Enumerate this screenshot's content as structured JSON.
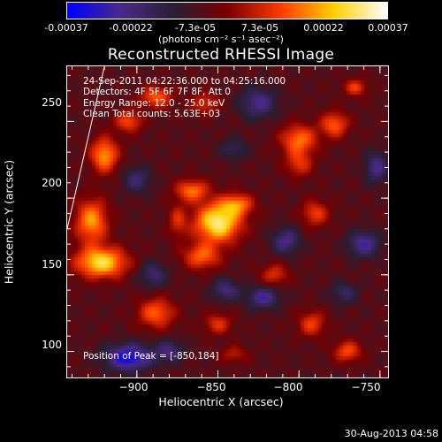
{
  "colorbar": {
    "tick_labels": [
      "-0.00037",
      "-0.00022",
      "-7.3e-05",
      "7.3e-05",
      "0.00022",
      "0.00037"
    ],
    "units": "(photons cm⁻² s⁻¹ asec⁻²)",
    "colors": [
      "#0000ff",
      "#4b2a8a",
      "#2a1f35",
      "#7a0000",
      "#ff3a00",
      "#ffd000",
      "#ffffff"
    ]
  },
  "chart_data": {
    "type": "heatmap",
    "title": "Reconstructed RHESSI Image",
    "xlabel": "Heliocentric X (arcsec)",
    "ylabel": "Heliocentric Y (arcsec)",
    "xlim": [
      -943,
      -745
    ],
    "ylim": [
      83,
      286
    ],
    "xticks": [
      -900,
      -850,
      -800,
      -750
    ],
    "yticks": [
      100,
      150,
      200,
      250
    ],
    "xtick_labels": [
      "−900",
      "−850",
      "−800",
      "−750"
    ],
    "ytick_labels": [
      "100",
      "150",
      "200",
      "250"
    ],
    "value_range": [
      -0.00037,
      0.00037
    ],
    "peak": {
      "x": -850,
      "y": 184
    },
    "limb_line": [
      [
        -943,
        180
      ],
      [
        -920,
        286
      ]
    ],
    "blobs": [
      {
        "x": -850,
        "y": 184,
        "sx": 10,
        "sy": 9,
        "v": 1.0
      },
      {
        "x": -866,
        "y": 205,
        "sx": 7,
        "sy": 5,
        "v": 0.6
      },
      {
        "x": -860,
        "y": 162,
        "sx": 8,
        "sy": 6,
        "v": 0.55
      },
      {
        "x": -838,
        "y": 196,
        "sx": 7,
        "sy": 5,
        "v": 0.55
      },
      {
        "x": -922,
        "y": 158,
        "sx": 11,
        "sy": 7,
        "v": 0.9
      },
      {
        "x": -928,
        "y": 185,
        "sx": 7,
        "sy": 10,
        "v": 0.7
      },
      {
        "x": -920,
        "y": 228,
        "sx": 6,
        "sy": 8,
        "v": 0.7
      },
      {
        "x": -905,
        "y": 250,
        "sx": 6,
        "sy": 5,
        "v": 0.5
      },
      {
        "x": -888,
        "y": 266,
        "sx": 7,
        "sy": 5,
        "v": 0.55
      },
      {
        "x": -858,
        "y": 262,
        "sx": 6,
        "sy": 5,
        "v": 0.4
      },
      {
        "x": -800,
        "y": 238,
        "sx": 8,
        "sy": 7,
        "v": 0.6
      },
      {
        "x": -778,
        "y": 248,
        "sx": 6,
        "sy": 6,
        "v": 0.55
      },
      {
        "x": -765,
        "y": 272,
        "sx": 5,
        "sy": 4,
        "v": 0.45
      },
      {
        "x": -800,
        "y": 222,
        "sx": 6,
        "sy": 6,
        "v": 0.4
      },
      {
        "x": -790,
        "y": 190,
        "sx": 6,
        "sy": 6,
        "v": 0.45
      },
      {
        "x": -815,
        "y": 150,
        "sx": 6,
        "sy": 5,
        "v": 0.4
      },
      {
        "x": -888,
        "y": 125,
        "sx": 8,
        "sy": 7,
        "v": 0.55
      },
      {
        "x": -850,
        "y": 118,
        "sx": 6,
        "sy": 5,
        "v": 0.4
      },
      {
        "x": -792,
        "y": 118,
        "sx": 6,
        "sy": 6,
        "v": 0.45
      },
      {
        "x": -770,
        "y": 100,
        "sx": 6,
        "sy": 5,
        "v": 0.5
      },
      {
        "x": -840,
        "y": 98,
        "sx": 6,
        "sy": 4,
        "v": 0.3
      },
      {
        "x": -875,
        "y": 185,
        "sx": 4,
        "sy": 8,
        "v": 0.35
      },
      {
        "x": -905,
        "y": 96,
        "sx": 10,
        "sy": 6,
        "v": -0.8
      },
      {
        "x": -880,
        "y": 100,
        "sx": 6,
        "sy": 5,
        "v": -0.45
      },
      {
        "x": -822,
        "y": 135,
        "sx": 7,
        "sy": 5,
        "v": -0.55
      },
      {
        "x": -845,
        "y": 140,
        "sx": 6,
        "sy": 5,
        "v": -0.45
      },
      {
        "x": -808,
        "y": 172,
        "sx": 6,
        "sy": 6,
        "v": -0.5
      },
      {
        "x": -760,
        "y": 170,
        "sx": 7,
        "sy": 6,
        "v": -0.55
      },
      {
        "x": -752,
        "y": 220,
        "sx": 5,
        "sy": 7,
        "v": -0.5
      },
      {
        "x": -825,
        "y": 262,
        "sx": 8,
        "sy": 7,
        "v": -0.5
      },
      {
        "x": -900,
        "y": 212,
        "sx": 6,
        "sy": 6,
        "v": -0.4
      },
      {
        "x": -890,
        "y": 150,
        "sx": 6,
        "sy": 6,
        "v": -0.4
      },
      {
        "x": -772,
        "y": 138,
        "sx": 6,
        "sy": 5,
        "v": -0.35
      },
      {
        "x": -840,
        "y": 232,
        "sx": 6,
        "sy": 5,
        "v": -0.3
      }
    ],
    "base_level": -0.15
  },
  "annotations": [
    "24-Sep-2011 04:22:36.000 to 04:25:16.000",
    "Detectors: 4F 5F 6F 7F 8F, Att 0",
    "Energy Range: 12.0 - 25.0 keV",
    "Clean    Total counts: 5.63E+03"
  ],
  "peak_label": "Position of Peak = [-850,184]",
  "footer_date": "30-Aug-2013 04:58"
}
